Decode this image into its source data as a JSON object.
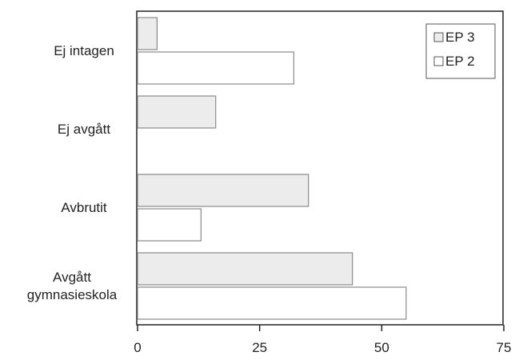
{
  "chart_data": {
    "type": "bar",
    "orientation": "horizontal",
    "categories": [
      [
        "Ej intagen"
      ],
      [
        "Ej avgått"
      ],
      [
        "Avbrutit"
      ],
      [
        "Avgått",
        "gymnasieskola"
      ]
    ],
    "series": [
      {
        "name": "EP 3",
        "values": [
          4,
          16,
          35,
          44
        ],
        "color": "#ececec"
      },
      {
        "name": "EP 2",
        "values": [
          32,
          0,
          13,
          55
        ],
        "color": "#ffffff"
      }
    ],
    "xlim": [
      0,
      75
    ],
    "xticks": [
      0,
      25,
      50,
      75
    ],
    "title": "",
    "xlabel": "",
    "ylabel": "",
    "grid": false,
    "legend_position": "top-right",
    "bar_stroke_color": "#8a8a8a",
    "axis_color": "#222222"
  }
}
